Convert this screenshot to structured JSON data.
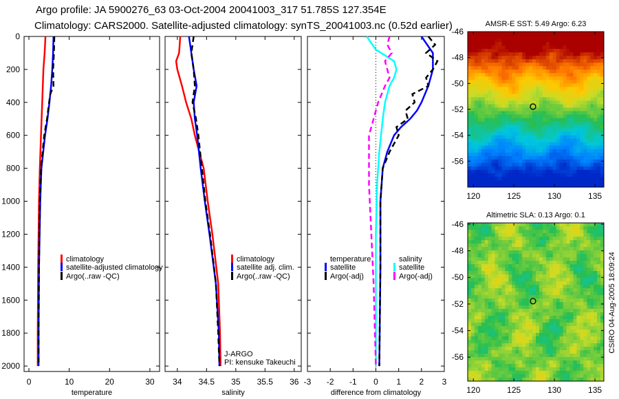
{
  "title_line1": "Argo profile: JA 5900276_63 03-Oct-2004 20041003_317 51.785S 127.354E",
  "title_line2": "Climatology: CARS2000. Satellite-adjusted climatology: synTS_20041003.nc (0.52d earlier)",
  "footer_vertical": "CSIRO 04-Aug-2005 18:09:24",
  "colors": {
    "red": "#ff0000",
    "blue": "#0000ff",
    "black": "#000000",
    "cyan": "#00ffff",
    "magenta": "#ff00ff"
  },
  "chart_data": [
    {
      "type": "line",
      "xlabel": "temperature",
      "ylabel": "depth",
      "xlim": [
        -1.2,
        32.4
      ],
      "ylim": [
        2033,
        0
      ],
      "xticks": [
        "0",
        "10",
        "20",
        "30"
      ],
      "xtick_values": [
        0,
        10,
        20,
        30
      ],
      "yticks": [
        "0",
        "200",
        "400",
        "600",
        "800",
        "1000",
        "1200",
        "1400",
        "1600",
        "1800",
        "2000"
      ],
      "legend": [
        "climatology",
        "satellite-adjusted climatology",
        "Argo(..raw -QC)"
      ],
      "series": [
        {
          "name": "climatology",
          "color": "red",
          "depth": [
            0,
            100,
            200,
            400,
            600,
            800,
            1000,
            1400,
            1800,
            2000
          ],
          "values": [
            4.1,
            3.9,
            3.6,
            3.3,
            3.0,
            2.7,
            2.5,
            2.3,
            2.2,
            2.2
          ]
        },
        {
          "name": "satellite-adjusted climatology",
          "color": "blue",
          "depth": [
            0,
            100,
            200,
            300,
            400,
            500,
            600,
            800,
            1000,
            1400,
            1800,
            2000
          ],
          "values": [
            6.1,
            6.0,
            5.8,
            5.5,
            5.1,
            4.6,
            4.0,
            3.1,
            2.8,
            2.5,
            2.4,
            2.4
          ]
        },
        {
          "name": "Argo(..raw -QC)",
          "color": "black",
          "dashed": true,
          "depth": [
            0,
            100,
            200,
            300,
            350,
            400,
            500,
            600,
            800,
            1000,
            1400,
            1800,
            2000
          ],
          "values": [
            6.3,
            6.2,
            6.0,
            6.1,
            5.3,
            5.0,
            4.5,
            3.8,
            3.0,
            2.7,
            2.5,
            2.4,
            2.4
          ]
        }
      ]
    },
    {
      "type": "line",
      "xlabel": "salinity",
      "ylabel": "depth",
      "xlim": [
        33.79,
        36.12
      ],
      "ylim": [
        2033,
        0
      ],
      "xticks": [
        "34",
        "34.5",
        "35",
        "35.5",
        "36"
      ],
      "xtick_values": [
        34,
        34.5,
        35,
        35.5,
        36
      ],
      "legend": [
        "climatology",
        "satellite adj. clim.",
        "Argo(..raw -QC)"
      ],
      "annotations": [
        "J-ARGO",
        "PI: kensuke Takeuchi"
      ],
      "series": [
        {
          "name": "climatology",
          "color": "red",
          "depth": [
            0,
            100,
            150,
            200,
            300,
            400,
            500,
            600,
            800,
            1000,
            1200,
            1500,
            1800,
            2000
          ],
          "values": [
            34.05,
            34.03,
            33.98,
            34.0,
            34.08,
            34.15,
            34.24,
            34.3,
            34.45,
            34.52,
            34.6,
            34.7,
            34.73,
            34.74
          ]
        },
        {
          "name": "satellite adj. clim.",
          "color": "blue",
          "depth": [
            0,
            100,
            200,
            300,
            400,
            500,
            600,
            800,
            1000,
            1200,
            1500,
            1800,
            2000
          ],
          "values": [
            34.2,
            34.24,
            34.28,
            34.33,
            34.28,
            34.3,
            34.34,
            34.4,
            34.47,
            34.55,
            34.66,
            34.71,
            34.72
          ]
        },
        {
          "name": "Argo(..raw -QC)",
          "color": "black",
          "dashed": true,
          "depth": [
            0,
            50,
            100,
            200,
            300,
            400,
            500,
            600,
            800,
            1000,
            1200,
            1500,
            1800,
            2000
          ],
          "values": [
            34.28,
            34.26,
            34.24,
            34.28,
            34.3,
            34.26,
            34.32,
            34.36,
            34.42,
            34.48,
            34.56,
            34.66,
            34.7,
            34.72
          ]
        }
      ]
    },
    {
      "type": "line",
      "xlabel": "difference from climatology",
      "ylabel": "depth",
      "xlim": [
        -3,
        3
      ],
      "ylim": [
        2033,
        0
      ],
      "xticks": [
        "-3",
        "-2",
        "-1",
        "0",
        "1",
        "2",
        "3"
      ],
      "xtick_values": [
        -3,
        -2,
        -1,
        0,
        1,
        2,
        3
      ],
      "legend_left": {
        "title": "temperature",
        "items": [
          "satellite",
          "Argo(-adj)"
        ]
      },
      "legend_right": {
        "title": "salinity",
        "items": [
          "satellite",
          "Argo(-adj)"
        ]
      },
      "series": [
        {
          "name": "temperature satellite",
          "color": "blue",
          "depth": [
            0,
            100,
            200,
            300,
            400,
            450,
            500,
            550,
            600,
            700,
            800,
            1000,
            1400,
            2000
          ],
          "values": [
            2.0,
            2.5,
            2.5,
            2.3,
            2.0,
            1.8,
            1.5,
            1.1,
            0.8,
            0.5,
            0.3,
            0.2,
            0.2,
            0.15
          ]
        },
        {
          "name": "temperature Argo(-adj)",
          "color": "black",
          "dashed": true,
          "depth": [
            0,
            50,
            100,
            150,
            200,
            250,
            300,
            350,
            400,
            450,
            500,
            550,
            600,
            700,
            800,
            1000,
            1400,
            2000
          ],
          "values": [
            2.3,
            2.6,
            2.2,
            2.7,
            2.5,
            2.2,
            2.3,
            1.6,
            1.7,
            1.3,
            1.4,
            0.9,
            1.0,
            0.6,
            0.3,
            0.2,
            0.2,
            0.15
          ]
        },
        {
          "name": "salinity satellite",
          "color": "cyan",
          "depth": [
            0,
            80,
            150,
            200,
            250,
            300,
            400,
            500,
            700,
            900,
            1200,
            1600,
            2000
          ],
          "values": [
            -0.4,
            0.0,
            0.8,
            0.9,
            0.8,
            0.6,
            0.4,
            0.3,
            0.15,
            0.05,
            0.0,
            0.0,
            0.0
          ]
        },
        {
          "name": "salinity Argo(-adj)",
          "color": "magenta",
          "dashed": true,
          "depth": [
            0,
            50,
            100,
            150,
            200,
            250,
            300,
            400,
            500,
            600,
            700,
            900,
            1200,
            1500,
            2000
          ],
          "values": [
            0.6,
            0.5,
            0.7,
            0.4,
            0.5,
            0.6,
            0.4,
            0.1,
            -0.1,
            -0.3,
            -0.3,
            -0.3,
            -0.2,
            -0.1,
            0.0
          ]
        }
      ]
    },
    {
      "type": "heatmap",
      "title": "AMSR-E SST: 5.49 Argo: 6.23",
      "xlim": [
        119.3,
        136.1
      ],
      "ylim": [
        -58,
        -46
      ],
      "xticks": [
        "120",
        "125",
        "130",
        "135"
      ],
      "yticks": [
        "-46",
        "-48",
        "-50",
        "-52",
        "-54",
        "-56"
      ],
      "marker": {
        "lon": 127.354,
        "lat": -51.785
      }
    },
    {
      "type": "heatmap",
      "title": "Altimetric SLA: 0.13 Argo: 0.1",
      "xlim": [
        119.3,
        136.1
      ],
      "ylim": [
        -57.8,
        -45.9
      ],
      "xticks": [
        "120",
        "125",
        "130",
        "135"
      ],
      "yticks": [
        "-46",
        "-48",
        "-50",
        "-52",
        "-54",
        "-56"
      ],
      "marker": {
        "lon": 127.354,
        "lat": -51.785
      }
    }
  ]
}
